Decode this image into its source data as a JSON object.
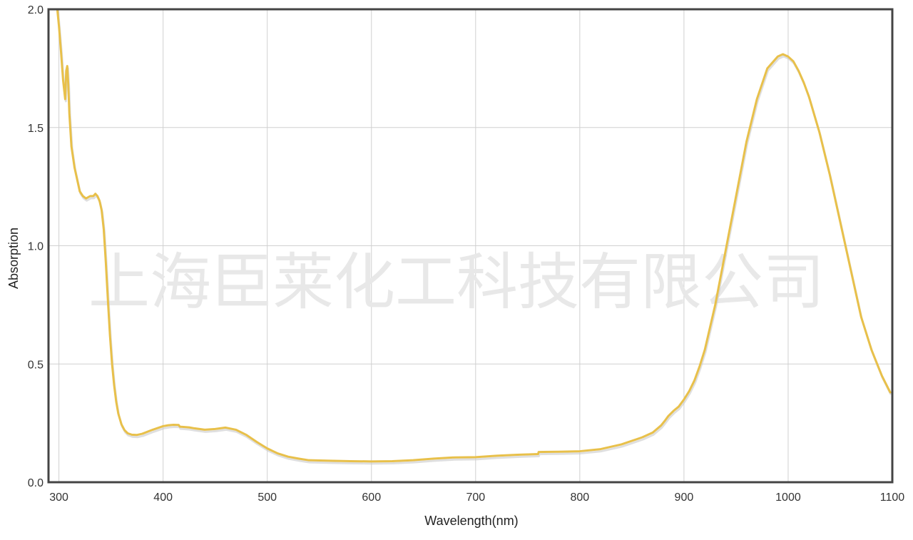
{
  "watermark": "上海臣莱化工科技有限公司",
  "colors": {
    "line": "#E8C04A",
    "shadow": "#c9c9c9",
    "grid": "#d0d0d0",
    "frame": "#444444",
    "background": "#ffffff"
  },
  "chart_data": {
    "type": "line",
    "title": "",
    "xlabel": "Wavelength(nm)",
    "ylabel": "Absorption",
    "xlim": [
      290,
      1100
    ],
    "ylim": [
      0.0,
      2.0
    ],
    "x_ticks": [
      300,
      400,
      500,
      600,
      700,
      800,
      900,
      1000,
      1100
    ],
    "x_tick_labels": [
      "300",
      "400",
      "500",
      "600",
      "700",
      "800",
      "900",
      "1000",
      "1100"
    ],
    "y_ticks": [
      0.0,
      0.5,
      1.0,
      1.5,
      2.0
    ],
    "y_tick_labels": [
      "0.0",
      "0.5",
      "1.0",
      "1.5",
      "2.0"
    ],
    "grid": true,
    "legend": "none",
    "series": [
      {
        "x": [
          298,
          300,
          302,
          304,
          306,
          307,
          308,
          309,
          310,
          312,
          315,
          318,
          320,
          323,
          326,
          330,
          333,
          335,
          337,
          339,
          341,
          343,
          345,
          347,
          349,
          351,
          353,
          355,
          357,
          360,
          363,
          366,
          370,
          375,
          380,
          390,
          400,
          405,
          410,
          415,
          416,
          425,
          430,
          440,
          450,
          460,
          470,
          480,
          490,
          500,
          510,
          520,
          530,
          540,
          560,
          580,
          600,
          620,
          640,
          660,
          680,
          700,
          720,
          740,
          760,
          760.5,
          780,
          800,
          820,
          840,
          860,
          870,
          878,
          882,
          885,
          890,
          895,
          900,
          905,
          910,
          915,
          920,
          930,
          940,
          950,
          960,
          970,
          980,
          990,
          995,
          1000,
          1005,
          1010,
          1015,
          1020,
          1030,
          1040,
          1050,
          1060,
          1070,
          1080,
          1090,
          1098
        ],
        "y": [
          2.02,
          1.93,
          1.82,
          1.7,
          1.62,
          1.74,
          1.76,
          1.68,
          1.56,
          1.42,
          1.33,
          1.27,
          1.23,
          1.21,
          1.2,
          1.21,
          1.21,
          1.22,
          1.21,
          1.19,
          1.15,
          1.07,
          0.93,
          0.77,
          0.62,
          0.5,
          0.41,
          0.34,
          0.29,
          0.245,
          0.22,
          0.207,
          0.201,
          0.2,
          0.205,
          0.222,
          0.237,
          0.241,
          0.243,
          0.242,
          0.235,
          0.232,
          0.228,
          0.222,
          0.225,
          0.231,
          0.222,
          0.2,
          0.17,
          0.143,
          0.122,
          0.108,
          0.1,
          0.093,
          0.091,
          0.089,
          0.088,
          0.089,
          0.093,
          0.1,
          0.105,
          0.106,
          0.112,
          0.116,
          0.119,
          0.128,
          0.129,
          0.131,
          0.14,
          0.16,
          0.19,
          0.21,
          0.24,
          0.262,
          0.28,
          0.302,
          0.32,
          0.35,
          0.385,
          0.43,
          0.49,
          0.56,
          0.75,
          0.98,
          1.21,
          1.44,
          1.62,
          1.75,
          1.8,
          1.81,
          1.8,
          1.78,
          1.74,
          1.69,
          1.63,
          1.48,
          1.3,
          1.1,
          0.9,
          0.7,
          0.56,
          0.45,
          0.38
        ]
      }
    ]
  }
}
